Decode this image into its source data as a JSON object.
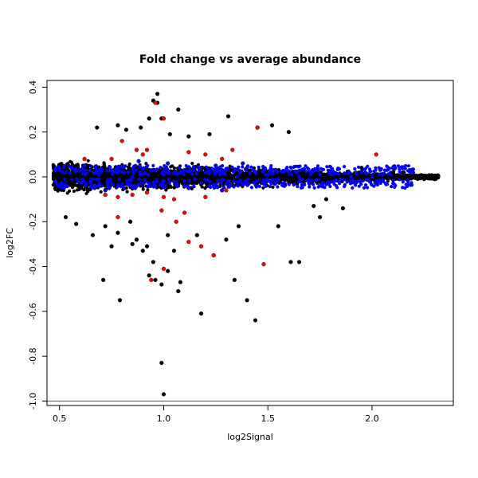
{
  "chart_data": {
    "type": "scatter",
    "title": "Fold change vs average abundance",
    "xlabel": "log2Signal",
    "ylabel": "log2FC",
    "xlim": [
      0.44,
      2.39
    ],
    "ylim": [
      -1.02,
      0.43
    ],
    "xticks": [
      "0.5",
      "1.0",
      "1.5",
      "2.0"
    ],
    "yticks": [
      "-1.0",
      "-0.8",
      "-0.6",
      "-0.4",
      "-0.2",
      "0.0",
      "0.2",
      "0.4"
    ],
    "hline": {
      "y": -1.0,
      "color": "#3f51b5"
    },
    "grid": false,
    "legend": "none",
    "series": [
      {
        "color": "#000000",
        "points": [
          [
            0.97,
            0.37
          ],
          [
            0.95,
            0.34
          ],
          [
            0.97,
            0.33
          ],
          [
            1.07,
            0.3
          ],
          [
            0.93,
            0.26
          ],
          [
            1.31,
            0.27
          ],
          [
            0.99,
            0.26
          ],
          [
            0.68,
            0.22
          ],
          [
            0.78,
            0.23
          ],
          [
            0.89,
            0.22
          ],
          [
            1.52,
            0.23
          ],
          [
            1.45,
            0.22
          ],
          [
            0.82,
            0.21
          ],
          [
            1.22,
            0.19
          ],
          [
            1.03,
            0.19
          ],
          [
            1.12,
            0.18
          ],
          [
            1.6,
            0.2
          ],
          [
            0.84,
            -0.2
          ],
          [
            0.72,
            -0.22
          ],
          [
            0.78,
            -0.25
          ],
          [
            0.85,
            -0.3
          ],
          [
            0.9,
            -0.33
          ],
          [
            0.95,
            -0.38
          ],
          [
            0.93,
            -0.44
          ],
          [
            0.96,
            -0.46
          ],
          [
            1.08,
            -0.47
          ],
          [
            1.02,
            -0.42
          ],
          [
            0.99,
            -0.48
          ],
          [
            1.07,
            -0.51
          ],
          [
            0.79,
            -0.55
          ],
          [
            0.71,
            -0.46
          ],
          [
            0.58,
            -0.21
          ],
          [
            0.53,
            -0.18
          ],
          [
            1.18,
            -0.61
          ],
          [
            1.34,
            -0.46
          ],
          [
            1.4,
            -0.55
          ],
          [
            1.44,
            -0.64
          ],
          [
            0.99,
            -0.83
          ],
          [
            1.0,
            -0.97
          ],
          [
            1.24,
            -0.35
          ],
          [
            1.3,
            -0.28
          ],
          [
            1.36,
            -0.22
          ],
          [
            1.55,
            -0.22
          ],
          [
            1.61,
            -0.38
          ],
          [
            1.65,
            -0.38
          ],
          [
            1.75,
            -0.18
          ],
          [
            1.72,
            -0.13
          ],
          [
            1.86,
            -0.14
          ],
          [
            1.78,
            -0.1
          ],
          [
            0.87,
            -0.28
          ],
          [
            0.92,
            -0.31
          ],
          [
            1.05,
            -0.33
          ],
          [
            1.16,
            -0.26
          ],
          [
            0.75,
            -0.31
          ],
          [
            1.02,
            -0.26
          ],
          [
            0.66,
            -0.26
          ],
          [
            2.3,
            -0.01
          ],
          [
            2.25,
            -0.01
          ],
          [
            2.2,
            0.0
          ],
          [
            2.15,
            0.02
          ],
          [
            2.1,
            0.02
          ],
          [
            1.95,
            0.04
          ]
        ]
      },
      {
        "color": "#0000ff",
        "points": [
          [
            0.48,
            0.03
          ],
          [
            0.53,
            0.02
          ],
          [
            0.6,
            0.03
          ],
          [
            0.65,
            -0.02
          ],
          [
            0.7,
            0.02
          ],
          [
            0.75,
            -0.03
          ],
          [
            0.8,
            0.02
          ],
          [
            0.85,
            0.0
          ],
          [
            0.9,
            -0.03
          ],
          [
            0.95,
            0.03
          ],
          [
            1.0,
            0.01
          ],
          [
            1.05,
            -0.02
          ],
          [
            1.1,
            0.03
          ],
          [
            1.15,
            -0.01
          ],
          [
            1.2,
            0.02
          ],
          [
            1.25,
            0.05
          ],
          [
            1.3,
            -0.03
          ],
          [
            1.35,
            0.0
          ],
          [
            1.4,
            0.04
          ],
          [
            1.45,
            -0.02
          ],
          [
            1.5,
            0.01
          ],
          [
            1.55,
            -0.01
          ],
          [
            1.6,
            0.02
          ],
          [
            1.65,
            0.0
          ],
          [
            1.7,
            -0.03
          ],
          [
            1.75,
            0.01
          ],
          [
            1.8,
            0.02
          ],
          [
            1.85,
            -0.01
          ],
          [
            1.9,
            0.0
          ],
          [
            1.95,
            0.02
          ],
          [
            2.0,
            0.0
          ],
          [
            2.05,
            0.01
          ],
          [
            2.1,
            0.04
          ],
          [
            2.18,
            0.03
          ],
          [
            0.62,
            0.05
          ],
          [
            0.88,
            0.07
          ],
          [
            1.12,
            -0.05
          ],
          [
            1.38,
            0.06
          ],
          [
            1.58,
            -0.04
          ],
          [
            0.72,
            -0.06
          ],
          [
            1.02,
            0.06
          ],
          [
            1.28,
            -0.06
          ]
        ]
      },
      {
        "color": "#ff0000",
        "points": [
          [
            0.96,
            0.33
          ],
          [
            1.0,
            0.26
          ],
          [
            1.45,
            0.22
          ],
          [
            2.02,
            0.1
          ],
          [
            0.8,
            0.16
          ],
          [
            0.87,
            0.12
          ],
          [
            0.75,
            0.08
          ],
          [
            0.9,
            0.1
          ],
          [
            1.12,
            0.11
          ],
          [
            1.2,
            0.1
          ],
          [
            1.28,
            0.08
          ],
          [
            1.33,
            0.12
          ],
          [
            0.62,
            0.08
          ],
          [
            0.78,
            -0.09
          ],
          [
            0.85,
            -0.08
          ],
          [
            0.92,
            -0.07
          ],
          [
            1.05,
            -0.1
          ],
          [
            1.2,
            -0.09
          ],
          [
            1.3,
            -0.06
          ],
          [
            0.72,
            -0.08
          ],
          [
            0.78,
            -0.18
          ],
          [
            0.99,
            -0.15
          ],
          [
            1.06,
            -0.2
          ],
          [
            1.12,
            -0.29
          ],
          [
            1.18,
            -0.31
          ],
          [
            1.24,
            -0.35
          ],
          [
            1.48,
            -0.39
          ],
          [
            0.94,
            -0.46
          ],
          [
            1.0,
            -0.41
          ],
          [
            1.1,
            -0.16
          ],
          [
            1.0,
            -0.09
          ],
          [
            0.92,
            0.12
          ]
        ]
      }
    ]
  }
}
